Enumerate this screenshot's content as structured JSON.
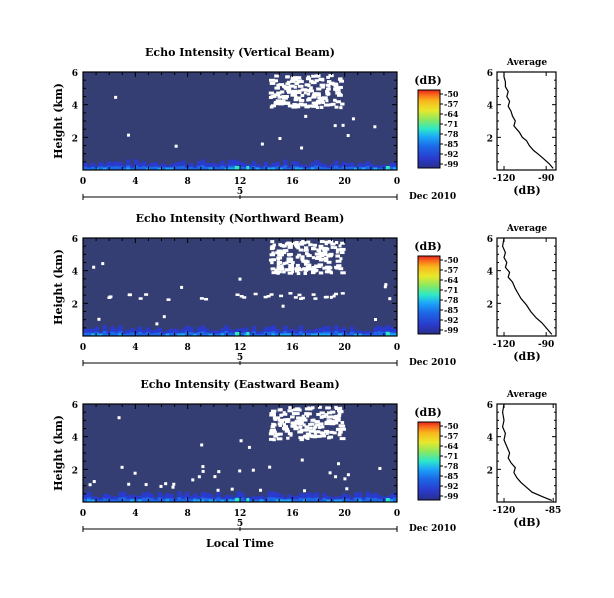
{
  "colorbar": {
    "unit_label": "(dB)",
    "tick_labels": [
      "-50",
      "-57",
      "-64",
      "-71",
      "-78",
      "-85",
      "-92",
      "-99"
    ],
    "colors": [
      "#e8221c",
      "#f86a1c",
      "#f8b81c",
      "#e8e82c",
      "#8ae860",
      "#2ce8c8",
      "#1ca8f8",
      "#1c6ae8",
      "#2a3acc",
      "#2a2f8a"
    ]
  },
  "shared": {
    "x_tick_labels": [
      "0",
      "4",
      "8",
      "12",
      "16",
      "20",
      "0"
    ],
    "date_tick_label": "5",
    "date_suffix": "Dec 2010",
    "x_axis_label": "Local Time",
    "y_axis_label": "Height (km)",
    "background_color": "#343e72"
  },
  "chart_data": [
    {
      "type": "heatmap",
      "title": "Echo Intensity (Vertical Beam)",
      "ylabel": "Height (km)",
      "x_ticks": [
        0,
        4,
        8,
        12,
        16,
        20,
        24
      ],
      "y_ticks": [
        2,
        4,
        6
      ],
      "y_tick_labels": [
        "2",
        "4",
        "6"
      ],
      "ylim": [
        0,
        6
      ],
      "colorbar_range_db": [
        -99,
        -50
      ],
      "average": {
        "title": "Average",
        "xlabel": "(dB)",
        "x_tick_labels": [
          "-120",
          "-90"
        ],
        "x_ticks": [
          -120,
          -90
        ],
        "xlim": [
          -125,
          -83
        ],
        "y_tick_labels": [
          "2",
          "4",
          "6"
        ],
        "profile": [
          [
            -85,
            0.1
          ],
          [
            -88,
            0.4
          ],
          [
            -92,
            0.7
          ],
          [
            -96,
            1.0
          ],
          [
            -99,
            1.2
          ],
          [
            -102,
            1.5
          ],
          [
            -104,
            1.8
          ],
          [
            -107,
            2.0
          ],
          [
            -109,
            2.3
          ],
          [
            -111,
            2.5
          ],
          [
            -113,
            2.7
          ],
          [
            -112,
            3.0
          ],
          [
            -114,
            3.3
          ],
          [
            -115,
            3.6
          ],
          [
            -117,
            3.9
          ],
          [
            -116,
            4.2
          ],
          [
            -118,
            4.5
          ],
          [
            -117,
            4.8
          ],
          [
            -119,
            5.1
          ],
          [
            -119,
            5.4
          ],
          [
            -120,
            5.7
          ],
          [
            -120,
            6.0
          ]
        ]
      }
    },
    {
      "type": "heatmap",
      "title": "Echo Intensity (Northward Beam)",
      "ylabel": "Height (km)",
      "x_ticks": [
        0,
        4,
        8,
        12,
        16,
        20,
        24
      ],
      "y_ticks": [
        2,
        4,
        6
      ],
      "y_tick_labels": [
        "2",
        "4",
        "6"
      ],
      "ylim": [
        0,
        6
      ],
      "colorbar_range_db": [
        -99,
        -50
      ],
      "average": {
        "title": "Average",
        "xlabel": "(dB)",
        "x_tick_labels": [
          "-120",
          "-90"
        ],
        "x_ticks": [
          -120,
          -90
        ],
        "xlim": [
          -125,
          -83
        ],
        "y_tick_labels": [
          "2",
          "4",
          "6"
        ],
        "profile": [
          [
            -86,
            0.1
          ],
          [
            -89,
            0.4
          ],
          [
            -93,
            0.8
          ],
          [
            -97,
            1.1
          ],
          [
            -101,
            1.5
          ],
          [
            -104,
            1.9
          ],
          [
            -108,
            2.3
          ],
          [
            -110,
            2.6
          ],
          [
            -112,
            2.9
          ],
          [
            -114,
            3.3
          ],
          [
            -117,
            3.6
          ],
          [
            -116,
            3.9
          ],
          [
            -119,
            4.2
          ],
          [
            -118,
            4.5
          ],
          [
            -120,
            4.8
          ],
          [
            -119,
            5.1
          ],
          [
            -121,
            5.5
          ],
          [
            -120,
            6.0
          ]
        ]
      }
    },
    {
      "type": "heatmap",
      "title": "Echo Intensity (Eastward Beam)",
      "ylabel": "Height (km)",
      "x_ticks": [
        0,
        4,
        8,
        12,
        16,
        20,
        24
      ],
      "y_ticks": [
        2,
        4,
        6
      ],
      "y_tick_labels": [
        "2",
        "4",
        "6"
      ],
      "ylim": [
        0,
        6
      ],
      "colorbar_range_db": [
        -99,
        -50
      ],
      "average": {
        "title": "Average",
        "xlabel": "(dB)",
        "x_tick_labels": [
          "-120",
          "-85"
        ],
        "x_ticks": [
          -120,
          -85
        ],
        "xlim": [
          -125,
          -83
        ],
        "y_tick_labels": [
          "2",
          "4",
          "6"
        ],
        "profile": [
          [
            -86,
            0.1
          ],
          [
            -92,
            0.3
          ],
          [
            -100,
            0.6
          ],
          [
            -104,
            0.9
          ],
          [
            -108,
            1.2
          ],
          [
            -111,
            1.5
          ],
          [
            -113,
            1.8
          ],
          [
            -112,
            2.1
          ],
          [
            -115,
            2.4
          ],
          [
            -117,
            2.7
          ],
          [
            -116,
            3.0
          ],
          [
            -118,
            3.4
          ],
          [
            -120,
            3.8
          ],
          [
            -119,
            4.2
          ],
          [
            -121,
            4.6
          ],
          [
            -120,
            5.0
          ],
          [
            -121,
            5.5
          ],
          [
            -120,
            6.0
          ]
        ]
      }
    }
  ]
}
